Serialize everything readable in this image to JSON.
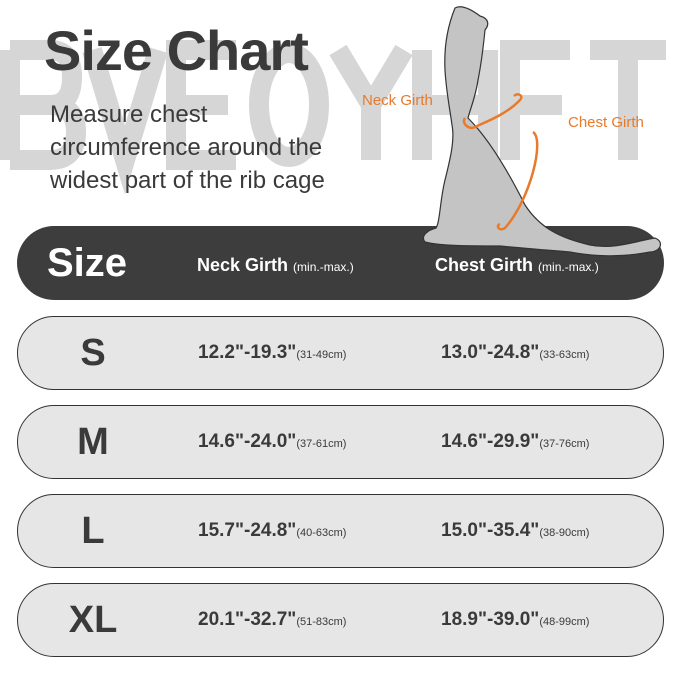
{
  "watermark": "BVEOYHFT",
  "title": "Size Chart",
  "description": [
    "Measure chest",
    "circumference around the",
    "widest part of the rib cage"
  ],
  "labels": {
    "neck": "Neck Girth",
    "chest": "Chest Girth"
  },
  "colors": {
    "accent": "#e87a2c",
    "header": "#3d3d3d",
    "row": "#e6e6e6",
    "dog": "#c4c4c4"
  },
  "header": {
    "size": "Size",
    "neck": "Neck Girth",
    "neck_unit": "(min.-max.)",
    "chest": "Chest Girth",
    "chest_unit": "(min.-max.)"
  },
  "rows": [
    {
      "size": "S",
      "neck": "12.2\"-19.3\"",
      "neck_cm": "(31-49cm)",
      "chest": "13.0\"-24.8\"",
      "chest_cm": "(33-63cm)"
    },
    {
      "size": "M",
      "neck": "14.6\"-24.0\"",
      "neck_cm": "(37-61cm)",
      "chest": "14.6\"-29.9\"",
      "chest_cm": "(37-76cm)"
    },
    {
      "size": "L",
      "neck": "15.7\"-24.8\"",
      "neck_cm": "(40-63cm)",
      "chest": "15.0\"-35.4\"",
      "chest_cm": "(38-90cm)"
    },
    {
      "size": "XL",
      "neck": "20.1\"-32.7\"",
      "neck_cm": "(51-83cm)",
      "chest": "18.9\"-39.0\"",
      "chest_cm": "(48-99cm)"
    }
  ]
}
